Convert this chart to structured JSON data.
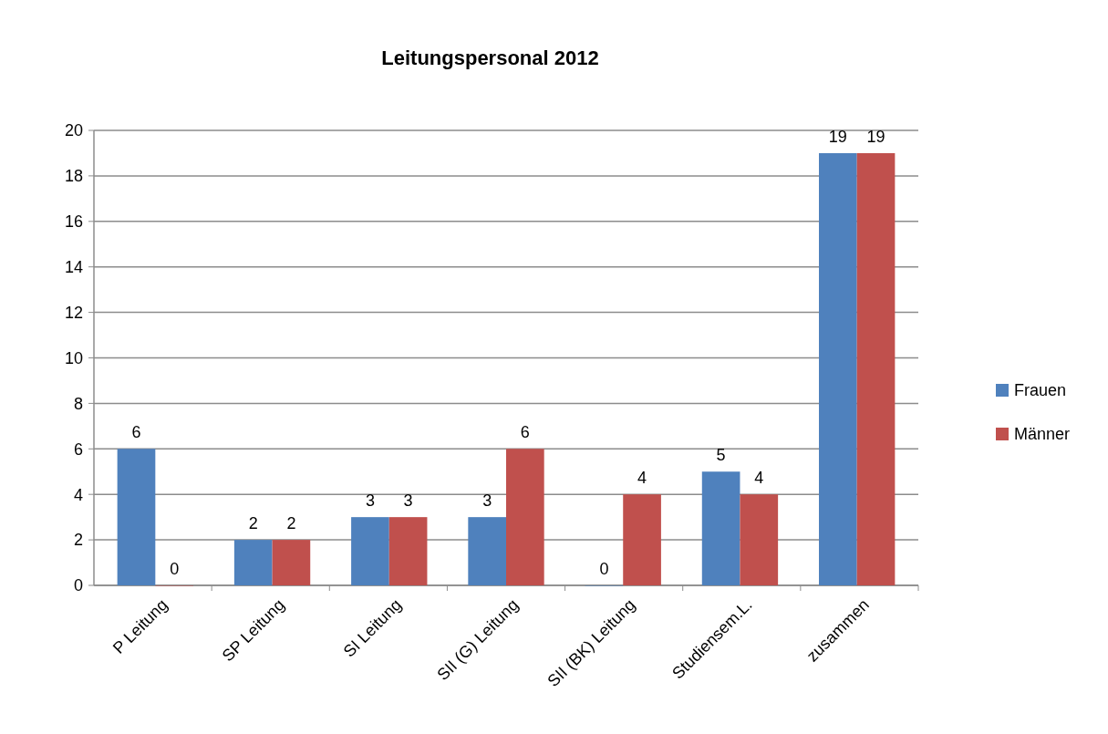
{
  "chart_data": {
    "type": "bar",
    "title": "Leitungspersonal 2012",
    "categories": [
      "P Leitung",
      "SP Leitung",
      "SI Leitung",
      "SII (G) Leitung",
      "SII (BK) Leitung",
      "Studiensem.L.",
      "zusammen"
    ],
    "series": [
      {
        "name": "Frauen",
        "color": "#4f81bd",
        "values": [
          6,
          2,
          3,
          3,
          0,
          5,
          19
        ]
      },
      {
        "name": "Männer",
        "color": "#c0504d",
        "values": [
          0,
          2,
          3,
          6,
          4,
          4,
          19
        ]
      }
    ],
    "ylim": [
      0,
      20
    ],
    "yticks": [
      0,
      2,
      4,
      6,
      8,
      10,
      12,
      14,
      16,
      18,
      20
    ],
    "grid": "y",
    "legend": "right",
    "data_labels": true
  }
}
